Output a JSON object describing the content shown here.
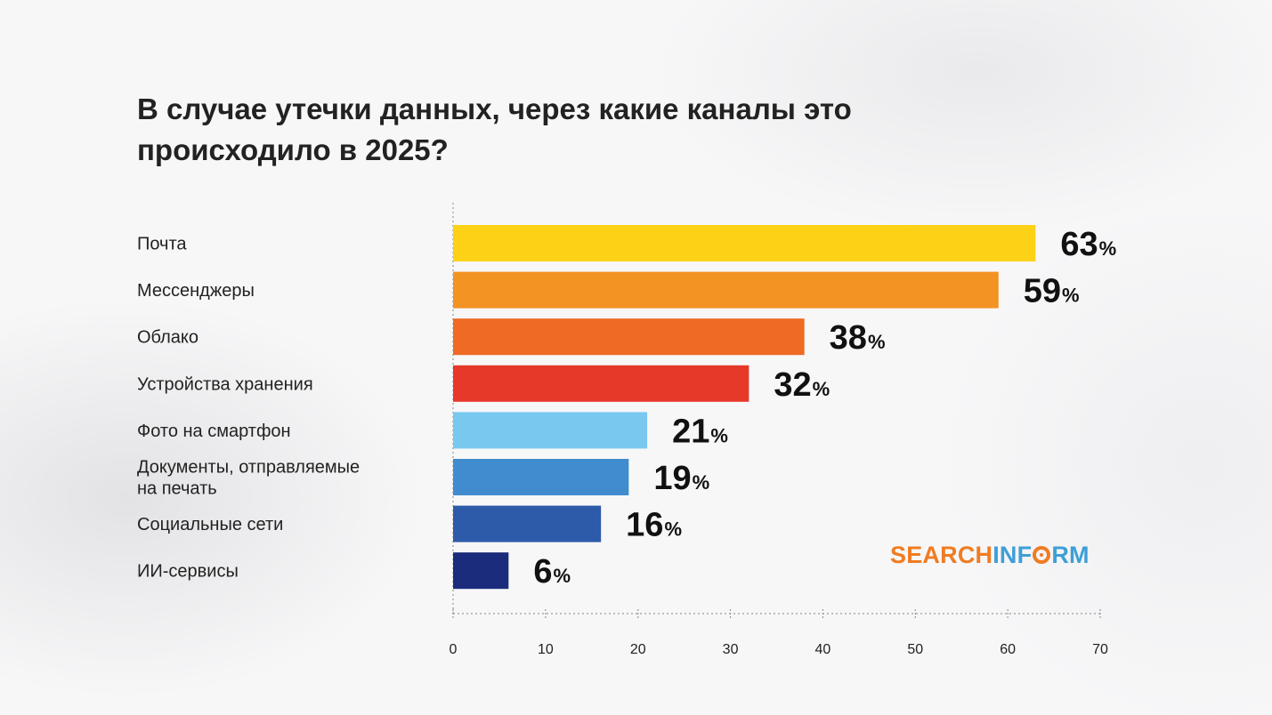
{
  "chart_data": {
    "type": "bar",
    "orientation": "horizontal",
    "title": "В случае утечки данных, через какие каналы это происходило в 2025?",
    "categories": [
      "Почта",
      "Мессенджеры",
      "Облако",
      "Устройства хранения",
      "Фото на смартфон",
      "Документы, отправляемые на печать",
      "Социальные сети",
      "ИИ-сервисы"
    ],
    "category_lines": [
      [
        "Почта"
      ],
      [
        "Мессенджеры"
      ],
      [
        "Облако"
      ],
      [
        "Устройства хранения"
      ],
      [
        "Фото на смартфон"
      ],
      [
        "Документы, отправляемые",
        "на печать"
      ],
      [
        "Социальные сети"
      ],
      [
        "ИИ-сервисы"
      ]
    ],
    "values": [
      63,
      59,
      38,
      32,
      21,
      19,
      16,
      6
    ],
    "value_suffix": "%",
    "colors": [
      "#fcd116",
      "#f39324",
      "#ee6a25",
      "#e6392a",
      "#79c8f0",
      "#408cce",
      "#2d5ba9",
      "#1b2c7c"
    ],
    "xlim": [
      0,
      70
    ],
    "xticks": [
      0,
      10,
      20,
      30,
      40,
      50,
      60,
      70
    ],
    "xlabel": "",
    "ylabel": "",
    "grid": false
  },
  "brand": {
    "logo_part1": "SEARCH",
    "logo_part2": "INF",
    "logo_part3": "RM",
    "logo_icon": "target-o-icon",
    "color_orange": "#f07c22",
    "color_blue": "#3f9fd7"
  }
}
